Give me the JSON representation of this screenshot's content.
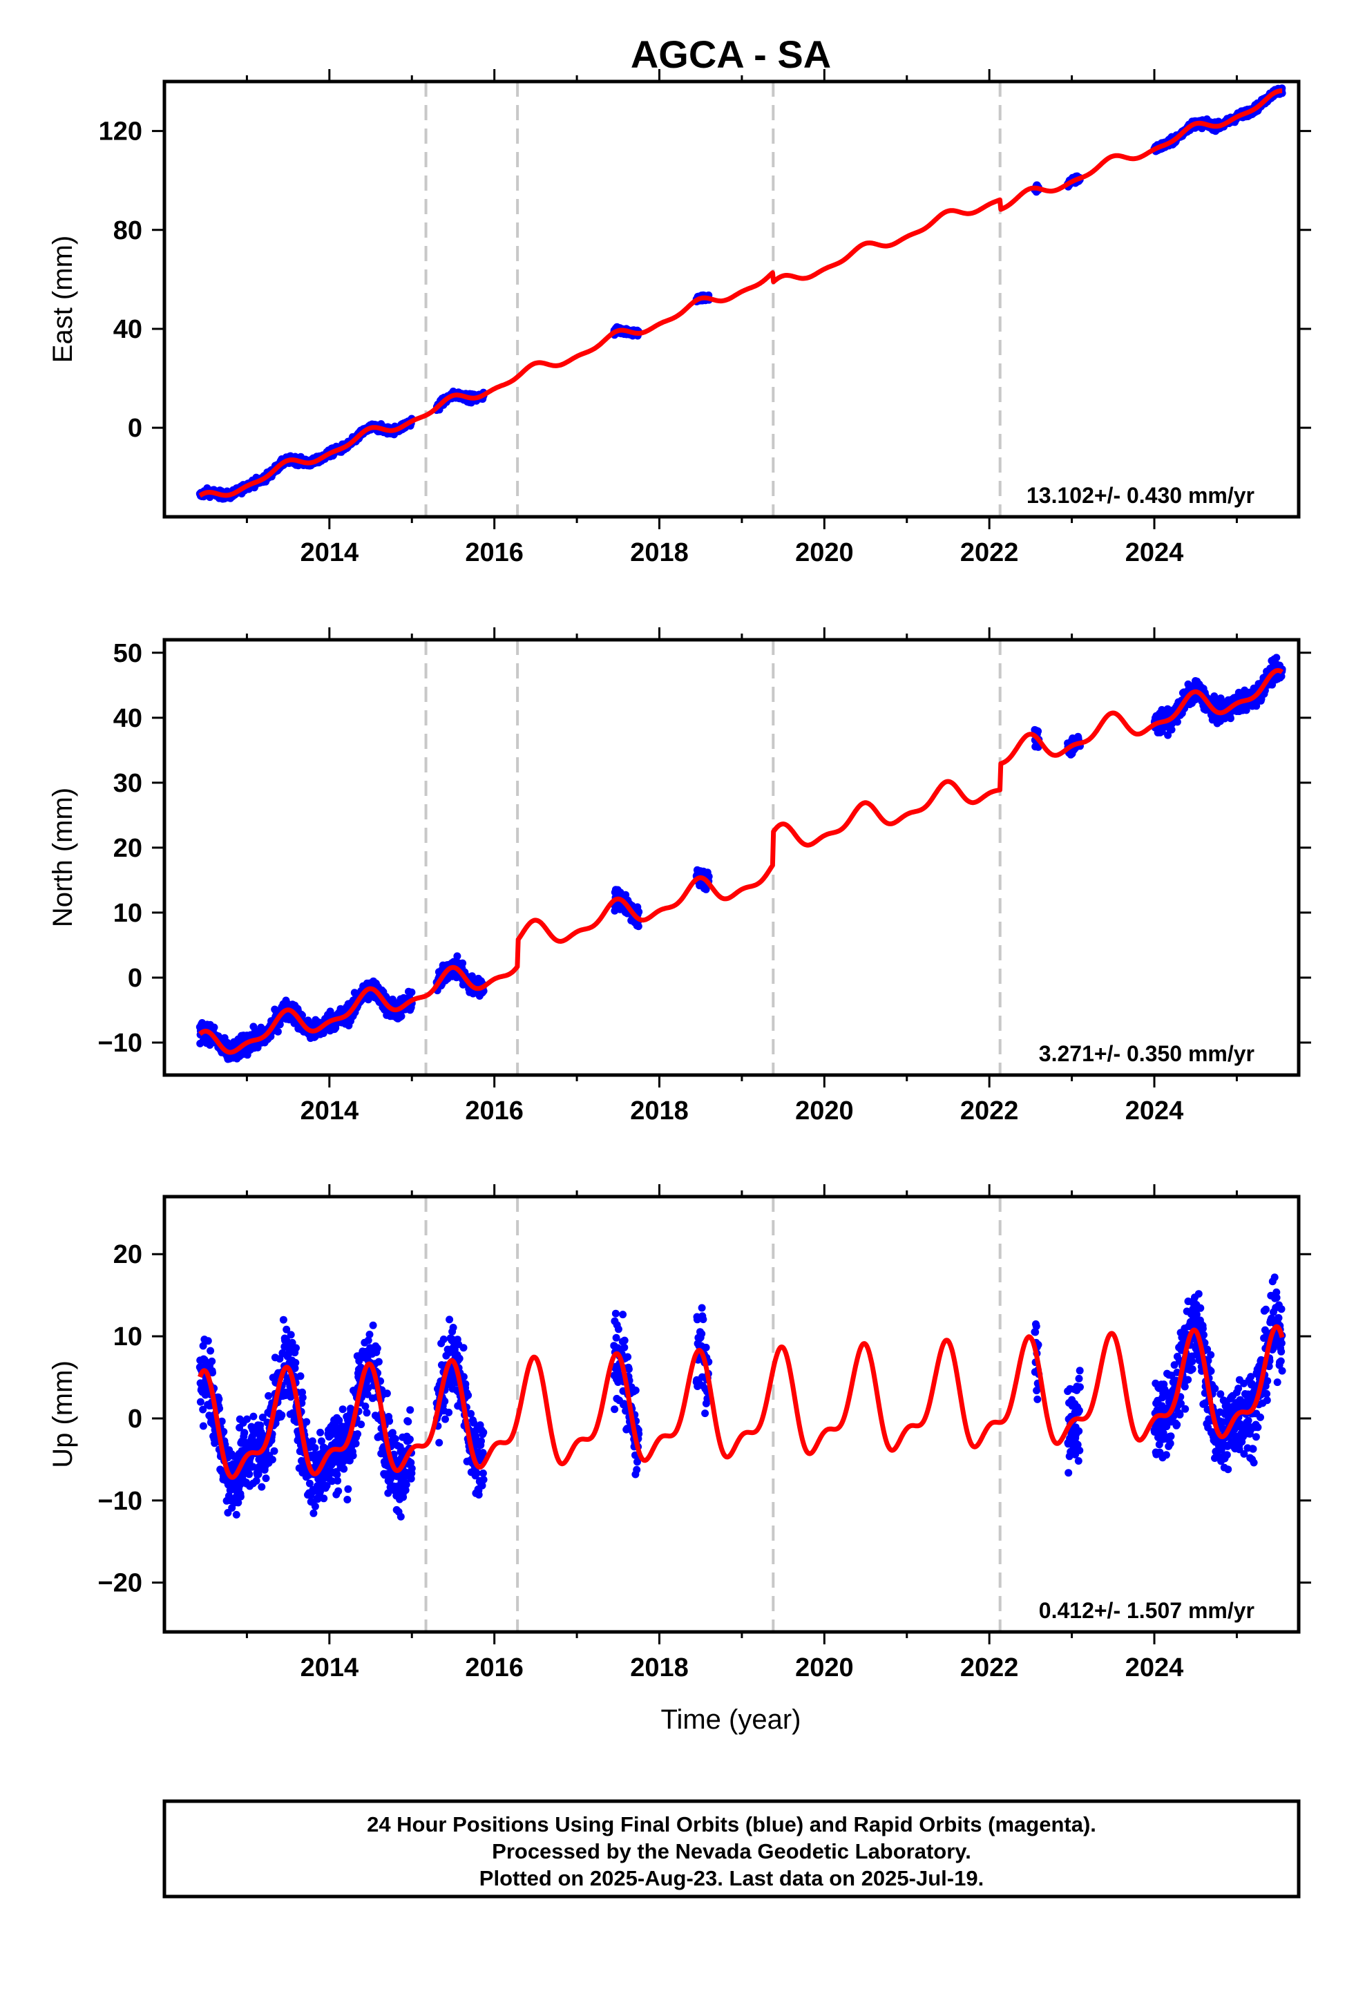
{
  "chart_data": {
    "title": "AGCA - SA",
    "type": "scatter",
    "x_ticks": [
      "2014",
      "2016",
      "2018",
      "2020",
      "2022",
      "2024"
    ],
    "xlim": [
      2012.0,
      2025.75
    ],
    "xlabel": "Time (year)",
    "steps": [
      2015.17,
      2016.28,
      2019.38,
      2022.13
    ],
    "colors": {
      "obs": "#0000ff",
      "model": "#ff0000",
      "steps": "#c8c8c8"
    },
    "panels": [
      {
        "id": "east",
        "ylabel": "East (mm)",
        "ylim": [
          -36,
          140
        ],
        "y_ticks": [
          120,
          80,
          40,
          0
        ],
        "rate_text": "13.102+/- 0.430 mm/yr",
        "velocity": 13.102,
        "ref_year": 2012.43,
        "intercept": -30,
        "seasonal_amp": 2.0,
        "step_offsets": [
          0,
          0,
          -4,
          -4
        ],
        "noise": 1.5,
        "data_segments": [
          [
            2012.43,
            2015.0
          ],
          [
            2015.3,
            2015.87
          ],
          [
            2017.45,
            2017.75
          ],
          [
            2018.45,
            2018.6
          ],
          [
            2022.55,
            2022.6
          ],
          [
            2022.95,
            2023.1
          ],
          [
            2024.0,
            2025.55
          ]
        ]
      },
      {
        "id": "north",
        "ylabel": "North (mm)",
        "ylim": [
          -15,
          52
        ],
        "y_ticks": [
          50,
          40,
          30,
          20,
          10,
          0,
          -10
        ],
        "rate_text": "3.271+/- 0.350 mm/yr",
        "velocity": 3.271,
        "ref_year": 2012.43,
        "intercept": -11,
        "seasonal_amp": 1.8,
        "step_offsets": [
          0,
          4,
          5,
          4
        ],
        "noise": 1.5,
        "data_segments": [
          [
            2012.43,
            2015.0
          ],
          [
            2015.3,
            2015.87
          ],
          [
            2017.45,
            2017.75
          ],
          [
            2018.45,
            2018.6
          ],
          [
            2022.55,
            2022.6
          ],
          [
            2022.95,
            2023.1
          ],
          [
            2024.0,
            2025.55
          ]
        ]
      },
      {
        "id": "up",
        "ylabel": "Up (mm)",
        "ylim": [
          -26,
          27
        ],
        "y_ticks": [
          20,
          10,
          0,
          -10,
          -20
        ],
        "rate_text": "0.412+/- 1.507 mm/yr",
        "velocity": 0.412,
        "ref_year": 2012.43,
        "intercept": -2,
        "seasonal_amp": 5.5,
        "step_offsets": [
          0,
          0,
          0,
          0
        ],
        "noise": 5.0,
        "data_segments": [
          [
            2012.43,
            2015.0
          ],
          [
            2015.3,
            2015.87
          ],
          [
            2017.45,
            2017.75
          ],
          [
            2018.45,
            2018.6
          ],
          [
            2022.55,
            2022.6
          ],
          [
            2022.95,
            2023.1
          ],
          [
            2024.0,
            2025.55
          ]
        ]
      }
    ]
  },
  "footer": {
    "line1": "24 Hour Positions Using Final Orbits (blue) and Rapid Orbits (magenta).",
    "line2": "Processed by the Nevada Geodetic Laboratory.",
    "line3": "Plotted on 2025-Aug-23. Last data on 2025-Jul-19."
  }
}
